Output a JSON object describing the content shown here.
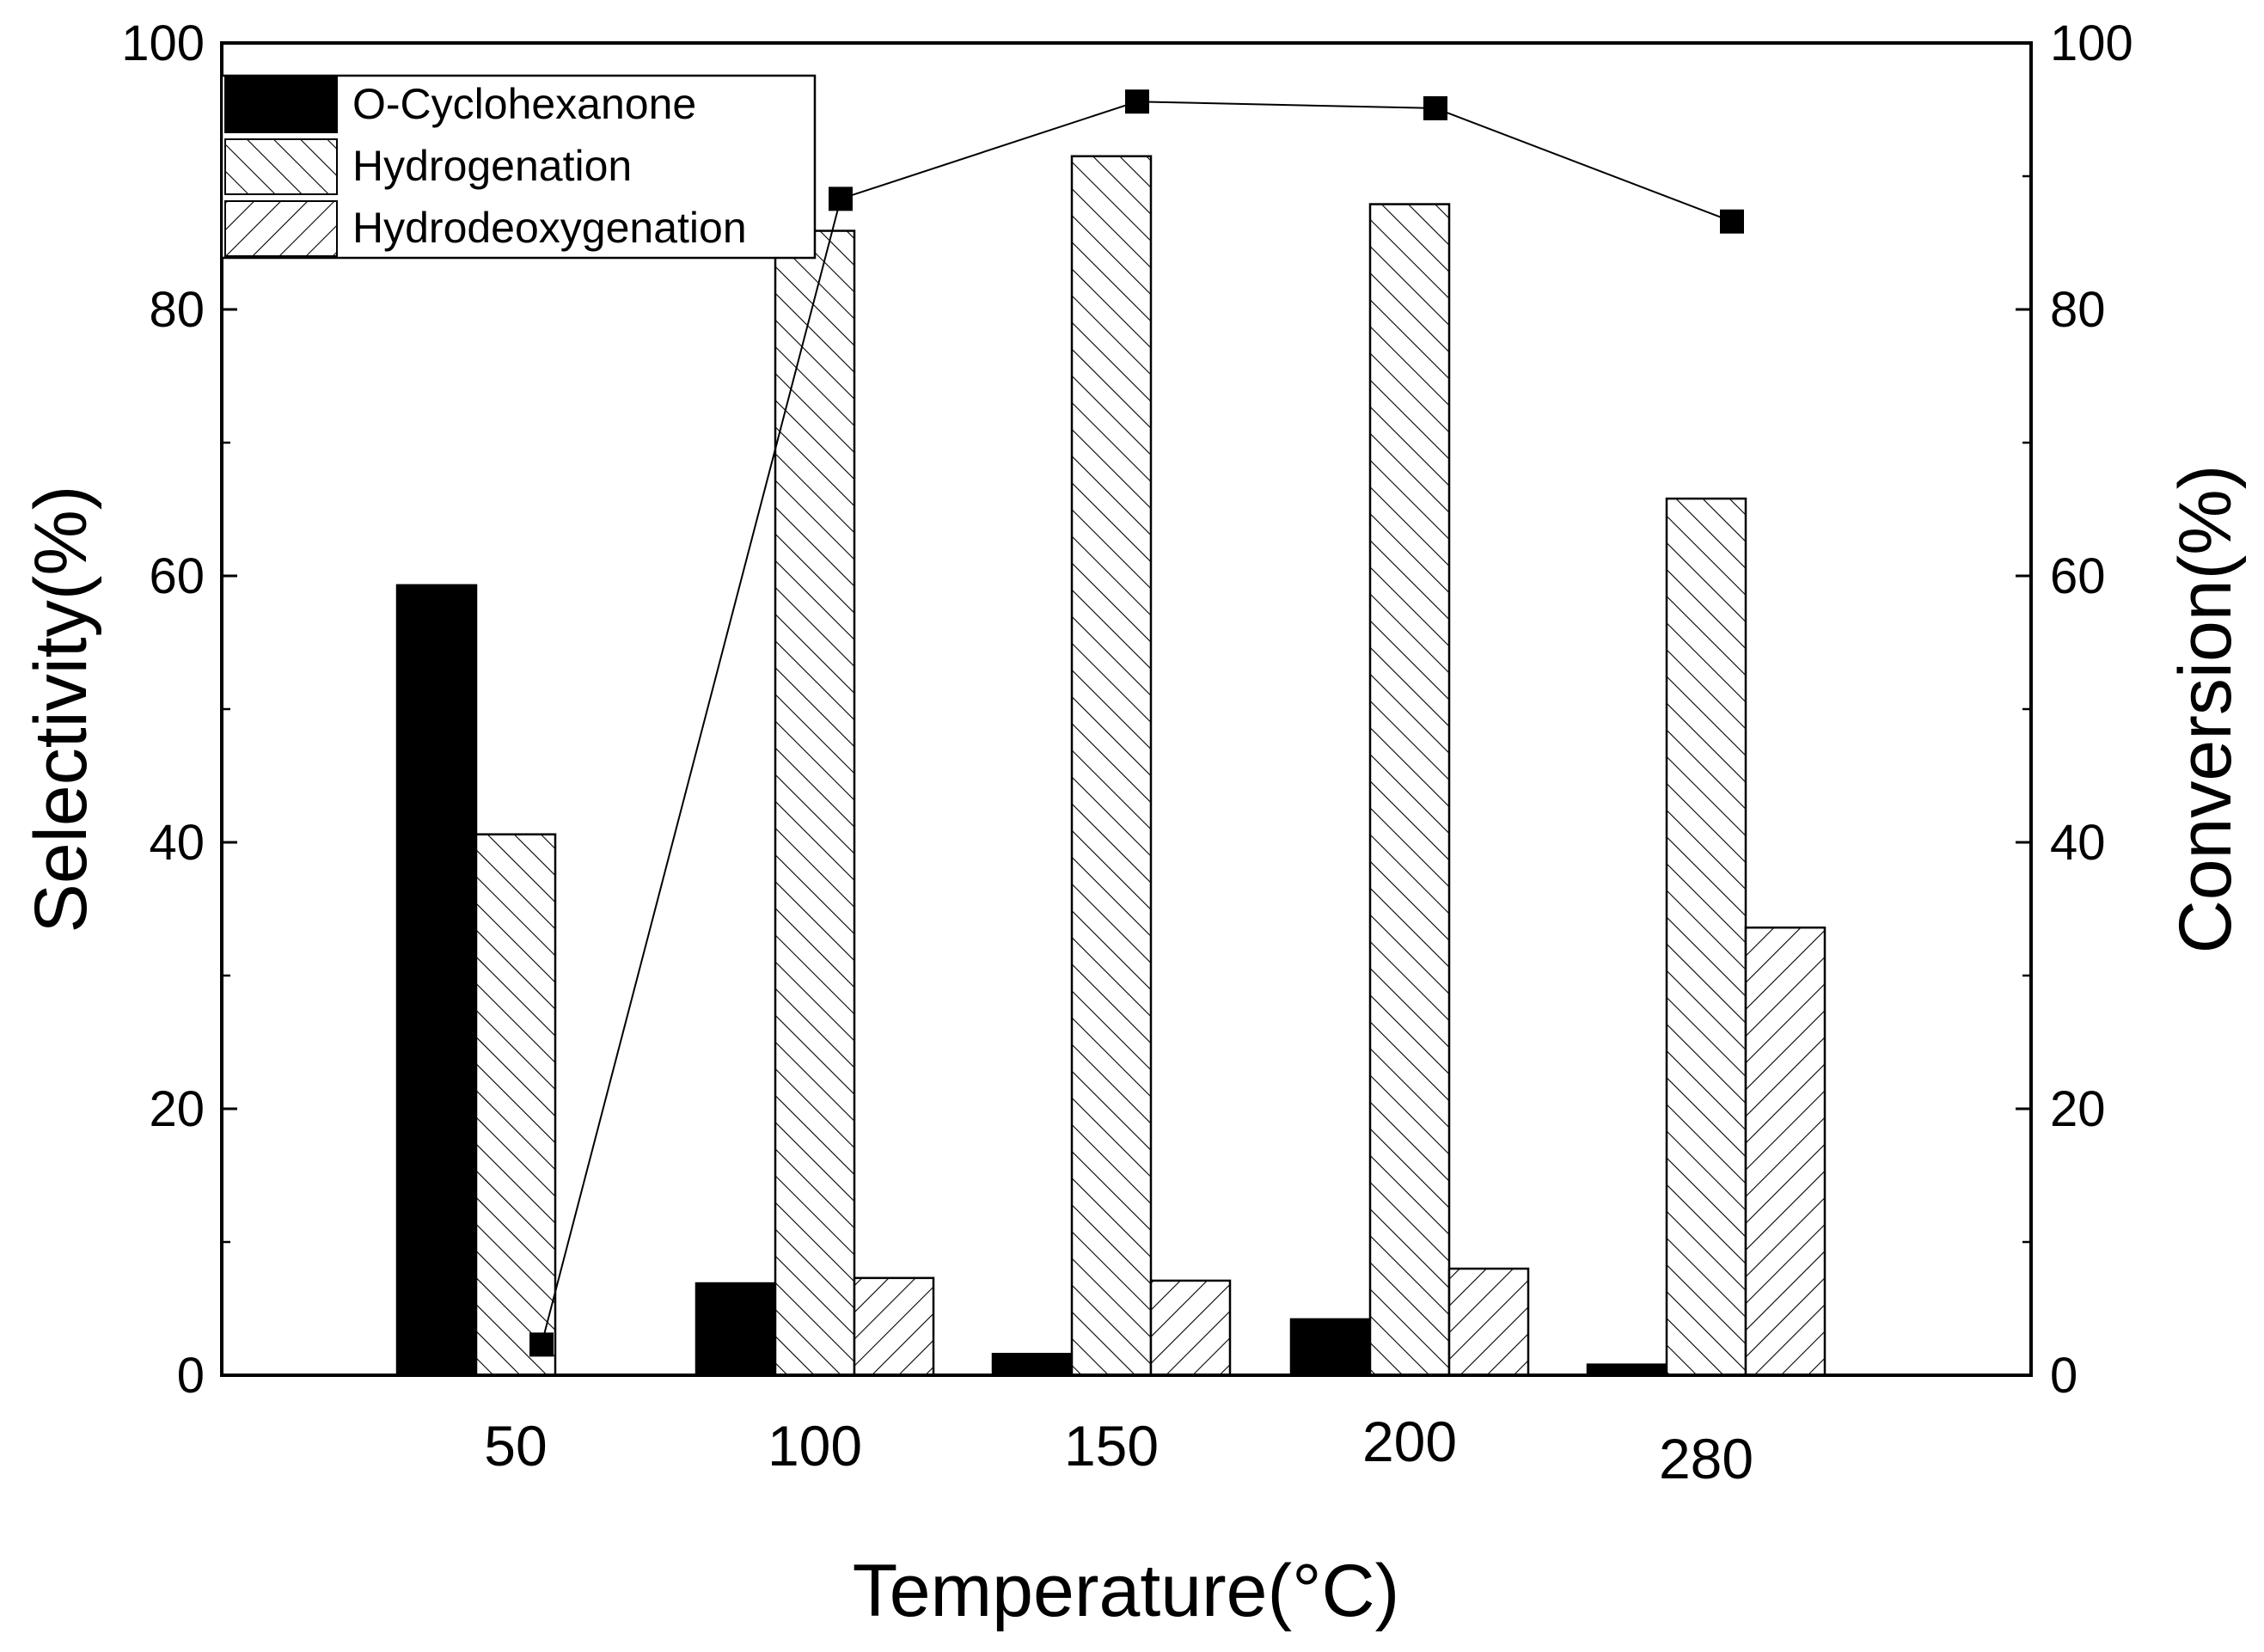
{
  "chart_data": {
    "type": "bar",
    "xlabel": "Temperature(°C)",
    "ylabel": "Selectivity(%)",
    "y2label": "Conversion(%)",
    "categories": [
      "50",
      "100",
      "150",
      "200",
      "280"
    ],
    "ylim": [
      0,
      100
    ],
    "y2lim": [
      0,
      100
    ],
    "yticks": [
      0,
      20,
      40,
      60,
      80,
      100
    ],
    "y2ticks": [
      0,
      20,
      40,
      60,
      80,
      100
    ],
    "grid": false,
    "legend_position": "top-left",
    "series": [
      {
        "name": "O-Cyclohexanone",
        "axis": "left",
        "pattern": "solid-black",
        "values": [
          59.3,
          6.9,
          1.6,
          4.2,
          0.8
        ]
      },
      {
        "name": "Hydrogenation",
        "axis": "left",
        "pattern": "backslash-hatch",
        "values": [
          40.6,
          85.9,
          91.5,
          87.9,
          65.8
        ]
      },
      {
        "name": "Hydrodeoxygenation",
        "axis": "left",
        "pattern": "slash-hatch",
        "values": [
          0,
          7.3,
          7.1,
          8.0,
          33.6
        ]
      }
    ],
    "line_series": {
      "axis": "right",
      "marker": "square",
      "values": [
        2.3,
        88.3,
        95.6,
        95.1,
        86.6
      ]
    }
  }
}
